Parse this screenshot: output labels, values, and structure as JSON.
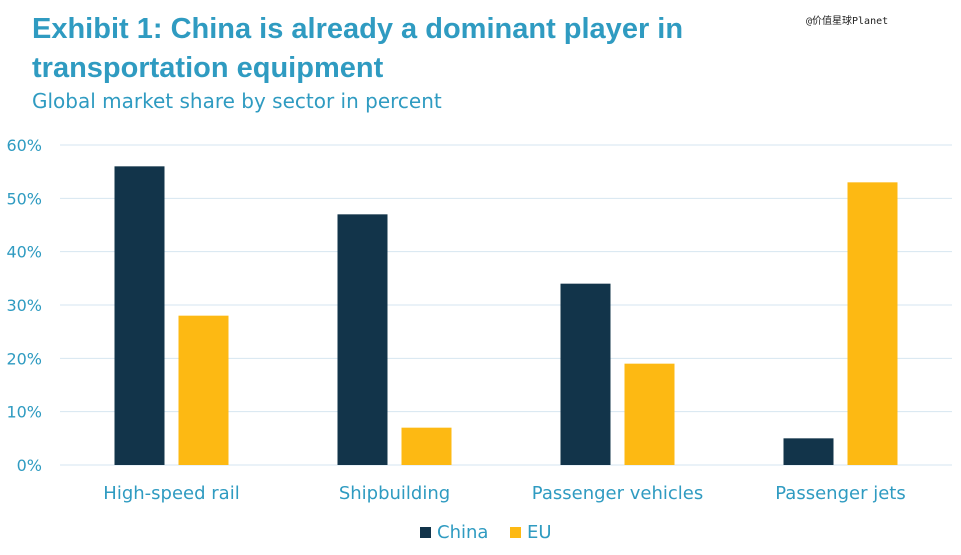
{
  "title": "Exhibit 1:  China is already a dominant player in transportation equipment",
  "subtitle": "Global market share by sector in percent",
  "watermark": "@价值星球Planet",
  "colors": {
    "china": "#12344a",
    "eu": "#fdb913",
    "text": "#2f9bc1",
    "grid": "#d6e6f0"
  },
  "chart_data": {
    "type": "bar",
    "title": "Exhibit 1:  China is already a dominant player in transportation equipment",
    "subtitle": "Global market share by sector in percent",
    "categories": [
      "High-speed rail",
      "Shipbuilding",
      "Passenger vehicles",
      "Passenger jets"
    ],
    "series": [
      {
        "name": "China",
        "color": "#12344a",
        "values": [
          56,
          47,
          34,
          5
        ]
      },
      {
        "name": "EU",
        "color": "#fdb913",
        "values": [
          28,
          7,
          19,
          53
        ]
      }
    ],
    "ylim": [
      0,
      60
    ],
    "yticks": [
      "0%",
      "10%",
      "20%",
      "30%",
      "40%",
      "50%",
      "60%"
    ],
    "ytick_values": [
      0,
      10,
      20,
      30,
      40,
      50,
      60
    ],
    "grid": true,
    "legend": "bottom-center"
  }
}
